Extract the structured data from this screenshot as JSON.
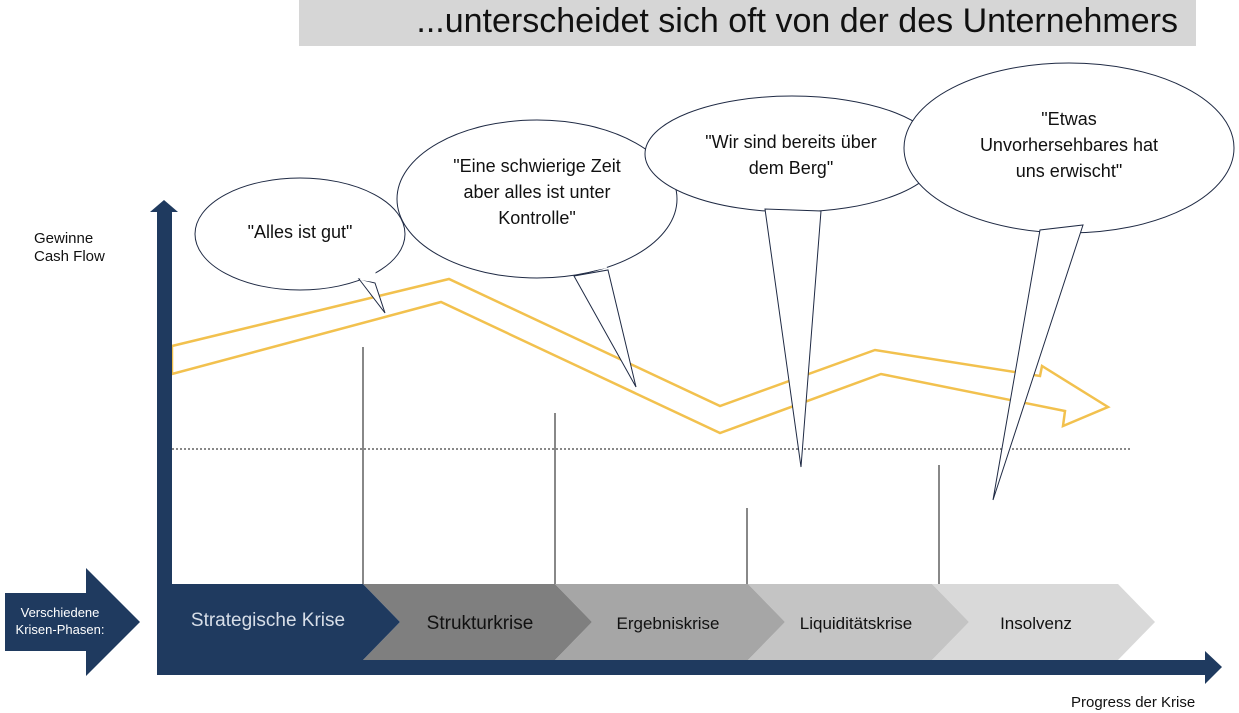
{
  "title": "...unterscheidet sich oft von der des Unternehmers",
  "y_axis_label_line1": "Gewinne",
  "y_axis_label_line2": "Cash Flow",
  "x_axis_label": "Progress der Krise",
  "phases_label_line1": "Verschiedene",
  "phases_label_line2": "Krisen-Phasen:",
  "phases": [
    {
      "label": "Strategische Krise"
    },
    {
      "label": "Strukturkrise"
    },
    {
      "label": "Ergebniskrise"
    },
    {
      "label": "Liquiditätskrise"
    },
    {
      "label": "Insolvenz"
    }
  ],
  "bubbles": [
    {
      "lines": [
        "\"Alles ist gut\""
      ]
    },
    {
      "lines": [
        "\"Eine schwierige Zeit",
        "aber alles ist unter",
        "Kontrolle\""
      ]
    },
    {
      "lines": [
        "\"Wir sind bereits über",
        "dem Berg\""
      ]
    },
    {
      "lines": [
        "\"Etwas",
        "Unvorhersehbares hat",
        "uns erwischt\""
      ]
    }
  ],
  "colors": {
    "navy": "#1f3a5f",
    "arrow_outline": "#f2c14e",
    "title_bar": "#d6d6d6",
    "phase_2": "#7f7f7f",
    "phase_3": "#a6a6a6",
    "phase_4": "#c4c4c4",
    "phase_5": "#d9d9d9"
  }
}
